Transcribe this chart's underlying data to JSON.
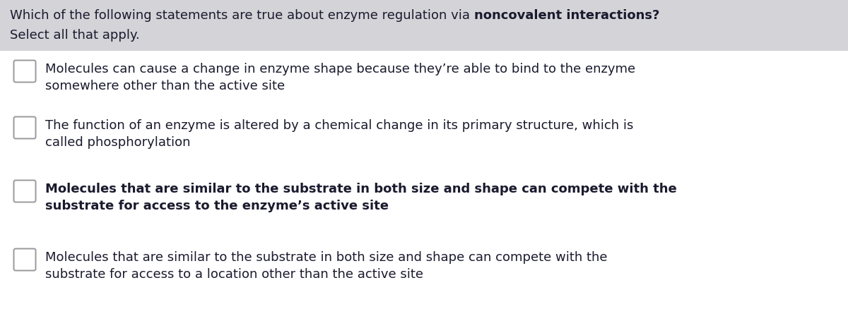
{
  "bg_color": "#ffffff",
  "header_bg_color": "#d3d3d8",
  "header_text_normal": "Which of the following statements are true about enzyme regulation via ",
  "header_text_bold": "noncovalent interactions?",
  "header_line2": "Select all that apply.",
  "options": [
    {
      "line1": "Molecules can cause a change in enzyme shape because they’re able to bind to the enzyme",
      "line2": "somewhere other than the active site",
      "bold": false
    },
    {
      "line1": "The function of an enzyme is altered by a chemical change in its primary structure, which is",
      "line2": "called phosphorylation",
      "bold": false
    },
    {
      "line1": "Molecules that are similar to the substrate in both size and shape can compete with the",
      "line2": "substrate for access to the enzyme’s active site",
      "bold": true
    },
    {
      "line1": "Molecules that are similar to the substrate in both size and shape can compete with the",
      "line2": "substrate for access to a location other than the active site",
      "bold": false
    }
  ],
  "checkbox_color": "#ffffff",
  "checkbox_edge_color": "#999999",
  "text_color": "#1a1a2e",
  "header_fontsize": 13.0,
  "body_fontsize": 13.0,
  "figsize": [
    12.0,
    4.55
  ],
  "dpi": 100
}
